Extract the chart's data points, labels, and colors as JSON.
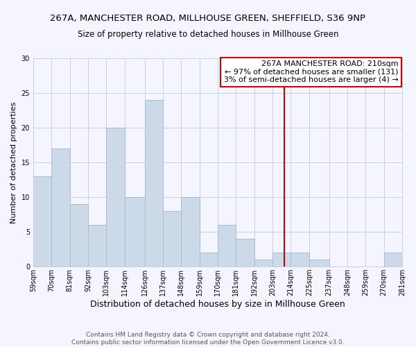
{
  "title": "267A, MANCHESTER ROAD, MILLHOUSE GREEN, SHEFFIELD, S36 9NP",
  "subtitle": "Size of property relative to detached houses in Millhouse Green",
  "xlabel": "Distribution of detached houses by size in Millhouse Green",
  "ylabel": "Number of detached properties",
  "bar_color": "#ccd9e8",
  "bar_edge_color": "#aabbd0",
  "background_color": "#f5f5ff",
  "grid_color": "#c8cfe0",
  "bins": [
    59,
    70,
    81,
    92,
    103,
    114,
    126,
    137,
    148,
    159,
    170,
    181,
    192,
    203,
    214,
    225,
    237,
    248,
    259,
    270,
    281
  ],
  "counts": [
    13,
    17,
    9,
    6,
    20,
    10,
    24,
    8,
    10,
    2,
    6,
    4,
    1,
    2,
    2,
    1,
    0,
    0,
    0,
    2
  ],
  "bin_labels": [
    "59sqm",
    "70sqm",
    "81sqm",
    "92sqm",
    "103sqm",
    "114sqm",
    "126sqm",
    "137sqm",
    "148sqm",
    "159sqm",
    "170sqm",
    "181sqm",
    "192sqm",
    "203sqm",
    "214sqm",
    "225sqm",
    "237sqm",
    "248sqm",
    "259sqm",
    "270sqm",
    "281sqm"
  ],
  "vline_x": 210,
  "vline_color": "#cc0000",
  "ylim": [
    0,
    30
  ],
  "yticks": [
    0,
    5,
    10,
    15,
    20,
    25,
    30
  ],
  "annotation_title": "267A MANCHESTER ROAD: 210sqm",
  "annotation_line1": "← 97% of detached houses are smaller (131)",
  "annotation_line2": "3% of semi-detached houses are larger (4) →",
  "annotation_box_color": "#ffffff",
  "annotation_box_edge": "#cc0000",
  "footer1": "Contains HM Land Registry data © Crown copyright and database right 2024.",
  "footer2": "Contains public sector information licensed under the Open Government Licence v3.0.",
  "title_fontsize": 9.5,
  "subtitle_fontsize": 8.5,
  "xlabel_fontsize": 9,
  "ylabel_fontsize": 8,
  "tick_fontsize": 7,
  "annotation_fontsize": 8,
  "footer_fontsize": 6.5
}
